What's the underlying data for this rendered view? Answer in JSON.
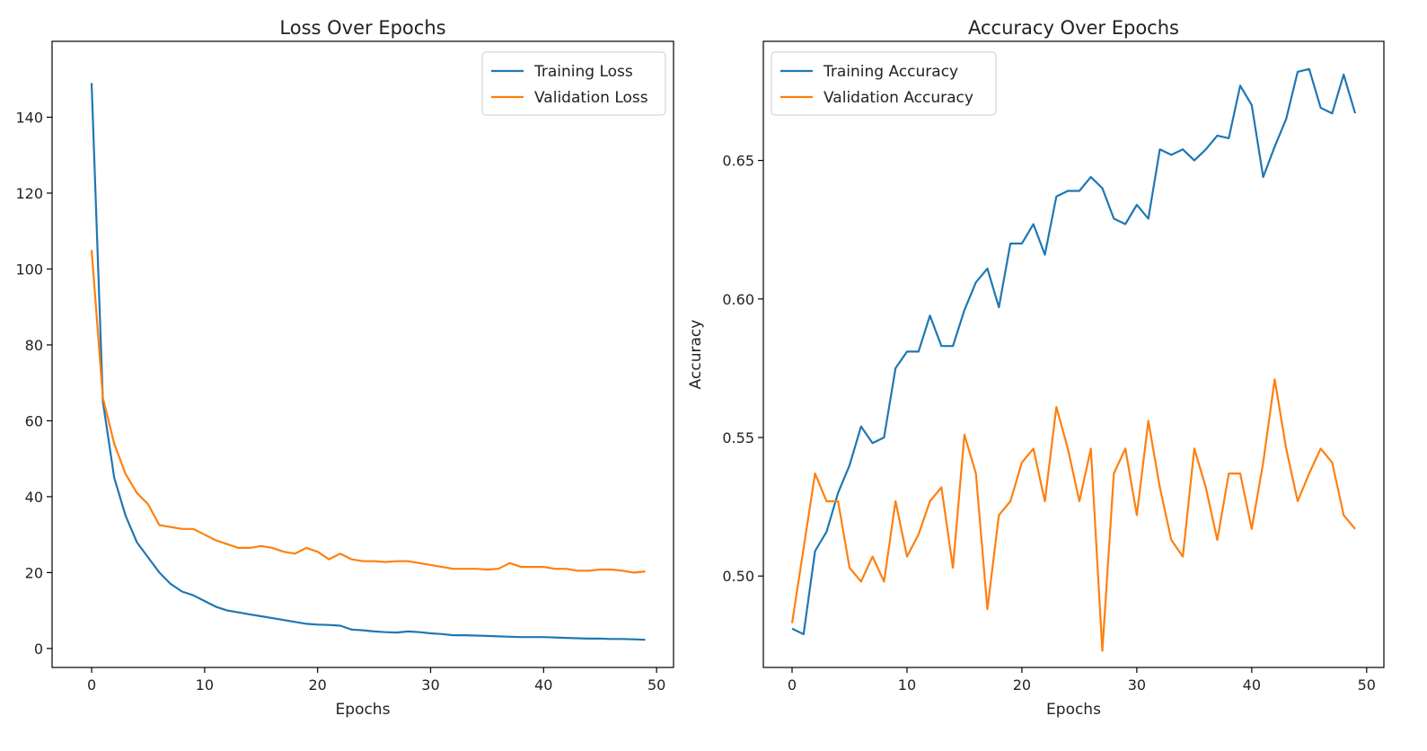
{
  "colors": {
    "training": "#1f77b4",
    "validation": "#ff7f0e",
    "axis": "#000000",
    "text": "#222222"
  },
  "chart_data": [
    {
      "type": "line",
      "title": "Loss Over Epochs",
      "xlabel": "Epochs",
      "ylabel": "",
      "xlim": [
        -3.5,
        51.5
      ],
      "ylim": [
        -5,
        160
      ],
      "xticks": [
        0,
        10,
        20,
        30,
        40,
        50
      ],
      "xtick_labels": [
        "0",
        "10",
        "20",
        "30",
        "40",
        "50"
      ],
      "yticks": [
        0,
        20,
        40,
        60,
        80,
        100,
        120,
        140
      ],
      "ytick_labels": [
        "0",
        "20",
        "40",
        "60",
        "80",
        "100",
        "120",
        "140"
      ],
      "grid": false,
      "legend_position": "upper-right",
      "x": [
        0,
        1,
        2,
        3,
        4,
        5,
        6,
        7,
        8,
        9,
        10,
        11,
        12,
        13,
        14,
        15,
        16,
        17,
        18,
        19,
        20,
        21,
        22,
        23,
        24,
        25,
        26,
        27,
        28,
        29,
        30,
        31,
        32,
        33,
        34,
        35,
        36,
        37,
        38,
        39,
        40,
        41,
        42,
        43,
        44,
        45,
        46,
        47,
        48,
        49
      ],
      "series": [
        {
          "name": "Training Loss",
          "color": "#1f77b4",
          "values": [
            149,
            65,
            45,
            35,
            28,
            24,
            20,
            17,
            15,
            14,
            12.5,
            11,
            10,
            9.5,
            9,
            8.5,
            8,
            7.5,
            7,
            6.5,
            6.3,
            6.2,
            6,
            5,
            4.8,
            4.5,
            4.3,
            4.2,
            4.5,
            4.3,
            4,
            3.8,
            3.5,
            3.5,
            3.4,
            3.3,
            3.2,
            3.1,
            3,
            3,
            3,
            2.9,
            2.8,
            2.7,
            2.6,
            2.6,
            2.5,
            2.5,
            2.4,
            2.3
          ]
        },
        {
          "name": "Validation Loss",
          "color": "#ff7f0e",
          "values": [
            105,
            66,
            54,
            46,
            41,
            38,
            32.5,
            32,
            31.5,
            31.5,
            30,
            28.5,
            27.5,
            26.5,
            26.5,
            27,
            26.5,
            25.5,
            25,
            26.5,
            25.5,
            23.5,
            25,
            23.5,
            23,
            23,
            22.8,
            23,
            23,
            22.5,
            22,
            21.5,
            21,
            21,
            21,
            20.8,
            21,
            22.5,
            21.5,
            21.5,
            21.5,
            21,
            21,
            20.5,
            20.5,
            20.8,
            20.8,
            20.5,
            20,
            20.3
          ]
        }
      ]
    },
    {
      "type": "line",
      "title": "Accuracy Over Epochs",
      "xlabel": "Epochs",
      "ylabel": "Accuracy",
      "xlim": [
        -2.5,
        51.5
      ],
      "ylim": [
        0.467,
        0.693
      ],
      "xticks": [
        0,
        10,
        20,
        30,
        40,
        50
      ],
      "xtick_labels": [
        "0",
        "10",
        "20",
        "30",
        "40",
        "50"
      ],
      "yticks": [
        0.5,
        0.55,
        0.6,
        0.65
      ],
      "ytick_labels": [
        "0.50",
        "0.55",
        "0.60",
        "0.65"
      ],
      "grid": false,
      "legend_position": "upper-left",
      "x": [
        0,
        1,
        2,
        3,
        4,
        5,
        6,
        7,
        8,
        9,
        10,
        11,
        12,
        13,
        14,
        15,
        16,
        17,
        18,
        19,
        20,
        21,
        22,
        23,
        24,
        25,
        26,
        27,
        28,
        29,
        30,
        31,
        32,
        33,
        34,
        35,
        36,
        37,
        38,
        39,
        40,
        41,
        42,
        43,
        44,
        45,
        46,
        47,
        48,
        49
      ],
      "series": [
        {
          "name": "Training Accuracy",
          "color": "#1f77b4",
          "values": [
            0.481,
            0.479,
            0.509,
            0.516,
            0.53,
            0.54,
            0.554,
            0.548,
            0.55,
            0.575,
            0.581,
            0.581,
            0.594,
            0.583,
            0.583,
            0.596,
            0.606,
            0.611,
            0.597,
            0.62,
            0.62,
            0.627,
            0.616,
            0.637,
            0.639,
            0.639,
            0.644,
            0.64,
            0.629,
            0.627,
            0.634,
            0.629,
            0.654,
            0.652,
            0.654,
            0.65,
            0.654,
            0.659,
            0.658,
            0.677,
            0.67,
            0.644,
            0.655,
            0.665,
            0.682,
            0.683,
            0.669,
            0.667,
            0.681,
            0.667
          ]
        },
        {
          "name": "Validation Accuracy",
          "color": "#ff7f0e",
          "values": [
            0.483,
            0.51,
            0.537,
            0.527,
            0.527,
            0.503,
            0.498,
            0.507,
            0.498,
            0.527,
            0.507,
            0.515,
            0.527,
            0.532,
            0.503,
            0.551,
            0.537,
            0.488,
            0.522,
            0.527,
            0.541,
            0.546,
            0.527,
            0.561,
            0.546,
            0.527,
            0.546,
            0.473,
            0.537,
            0.546,
            0.522,
            0.556,
            0.532,
            0.513,
            0.507,
            0.546,
            0.532,
            0.513,
            0.537,
            0.537,
            0.517,
            0.541,
            0.571,
            0.546,
            0.527,
            0.537,
            0.546,
            0.541,
            0.522,
            0.517
          ]
        }
      ]
    }
  ]
}
